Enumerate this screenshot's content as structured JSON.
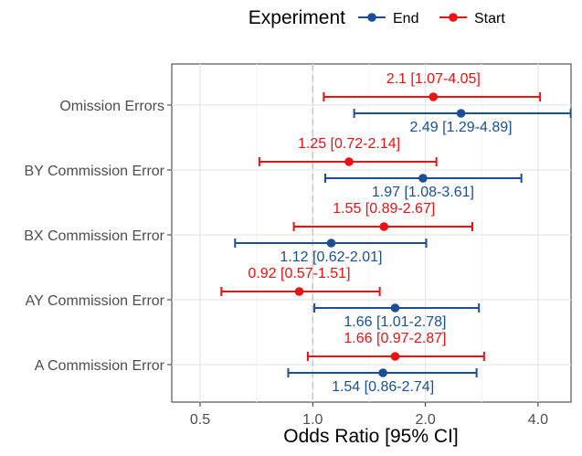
{
  "chart_data": {
    "type": "forest",
    "xlabel": "Odds Ratio [95% CI]",
    "ylabel": "",
    "x_scale": "log",
    "xlim": [
      0.42,
      4.9
    ],
    "x_ticks": [
      0.5,
      1.0,
      2.0,
      4.0
    ],
    "x_tick_labels": [
      "0.5",
      "1.0",
      "2.0",
      "4.0"
    ],
    "reference_line": 1.0,
    "grid": true,
    "legend": {
      "title": "Experiment",
      "position": "top",
      "entries": [
        "End",
        "Start"
      ]
    },
    "categories": [
      "Omission Errors",
      "BY Commission Error",
      "BX Commission Error",
      "AY Commission Error",
      "A Commission Error"
    ],
    "series": [
      {
        "name": "Start",
        "color": "#ee1111",
        "points": [
          {
            "category": "Omission Errors",
            "or": 2.1,
            "lo": 1.07,
            "hi": 4.05,
            "label": "2.1 [1.07-4.05]"
          },
          {
            "category": "BY Commission Error",
            "or": 1.25,
            "lo": 0.72,
            "hi": 2.14,
            "label": "1.25 [0.72-2.14]"
          },
          {
            "category": "BX Commission Error",
            "or": 1.55,
            "lo": 0.89,
            "hi": 2.67,
            "label": "1.55 [0.89-2.67]"
          },
          {
            "category": "AY Commission Error",
            "or": 0.92,
            "lo": 0.57,
            "hi": 1.51,
            "label": "0.92 [0.57-1.51]"
          },
          {
            "category": "A Commission Error",
            "or": 1.66,
            "lo": 0.97,
            "hi": 2.87,
            "label": "1.66 [0.97-2.87]"
          }
        ]
      },
      {
        "name": "End",
        "color": "#1a4f96",
        "points": [
          {
            "category": "Omission Errors",
            "or": 2.49,
            "lo": 1.29,
            "hi": 4.89,
            "label": "2.49 [1.29-4.89]"
          },
          {
            "category": "BY Commission Error",
            "or": 1.97,
            "lo": 1.08,
            "hi": 3.61,
            "label": "1.97 [1.08-3.61]"
          },
          {
            "category": "BX Commission Error",
            "or": 1.12,
            "lo": 0.62,
            "hi": 2.01,
            "label": "1.12 [0.62-2.01]"
          },
          {
            "category": "AY Commission Error",
            "or": 1.66,
            "lo": 1.01,
            "hi": 2.78,
            "label": "1.66 [1.01-2.78]"
          },
          {
            "category": "A Commission Error",
            "or": 1.54,
            "lo": 0.86,
            "hi": 2.74,
            "label": "1.54 [0.86-2.74]"
          }
        ]
      }
    ]
  }
}
